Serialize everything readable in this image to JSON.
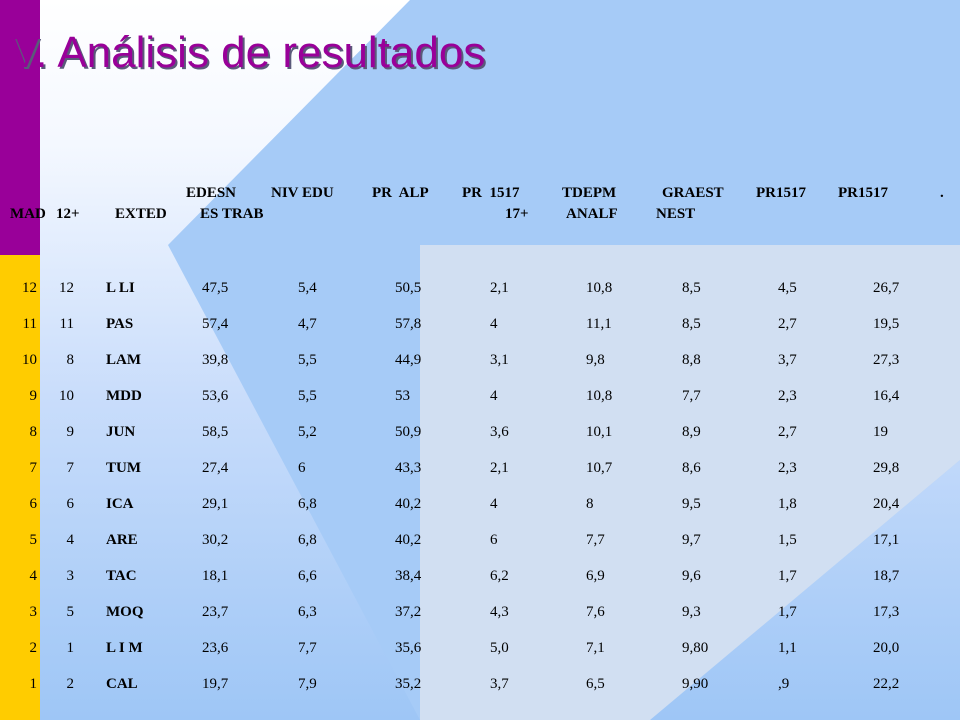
{
  "title": "V. Análisis de resultados",
  "headers": {
    "mad": "MAD",
    "c12": "12+",
    "exted": "EXTED",
    "edesn": "EDESN",
    "es_trab": "ES TRAB",
    "nivedu": "NIV EDU",
    "pralp": "PR  ALP",
    "pr1517a": "PR  1517",
    "plus17": "17+",
    "tdepm": "TDEPM",
    "analf": "ANALF",
    "graest": "GRAEST",
    "nest": "NEST",
    "pr1517b": "PR1517",
    "pr1517c": "PR1517",
    "dot": "."
  },
  "rows": [
    {
      "a": "12",
      "b": "12",
      "name": "L LI",
      "c1": "47,5",
      "c2": "5,4",
      "c3": "50,5",
      "c4": "2,1",
      "c5": "10,8",
      "c6": "8,5",
      "c7": "4,5",
      "c8": "26,7"
    },
    {
      "a": "11",
      "b": "11",
      "name": "PAS",
      "c1": "57,4",
      "c2": "4,7",
      "c3": "57,8",
      "c4": "4",
      "c5": "11,1",
      "c6": "8,5",
      "c7": "2,7",
      "c8": "19,5"
    },
    {
      "a": "10",
      "b": "8",
      "name": "LAM",
      "c1": "39,8",
      "c2": "5,5",
      "c3": "44,9",
      "c4": "3,1",
      "c5": "9,8",
      "c6": "8,8",
      "c7": "3,7",
      "c8": "27,3"
    },
    {
      "a": "9",
      "b": "10",
      "name": "MDD",
      "c1": "53,6",
      "c2": "5,5",
      "c3": "53",
      "c4": "4",
      "c5": "10,8",
      "c6": "7,7",
      "c7": "2,3",
      "c8": "16,4"
    },
    {
      "a": "8",
      "b": "9",
      "name": "JUN",
      "c1": "58,5",
      "c2": "5,2",
      "c3": "50,9",
      "c4": "3,6",
      "c5": "10,1",
      "c6": "8,9",
      "c7": "2,7",
      "c8": "19"
    },
    {
      "a": "7",
      "b": "7",
      "name": "TUM",
      "c1": "27,4",
      "c2": "6",
      "c3": "43,3",
      "c4": "2,1",
      "c5": "10,7",
      "c6": "8,6",
      "c7": "2,3",
      "c8": "29,8"
    },
    {
      "a": "6",
      "b": "6",
      "name": "ICA",
      "c1": "29,1",
      "c2": "6,8",
      "c3": "40,2",
      "c4": "4",
      "c5": "8",
      "c6": "9,5",
      "c7": "1,8",
      "c8": "20,4"
    },
    {
      "a": "5",
      "b": "4",
      "name": "ARE",
      "c1": "30,2",
      "c2": "6,8",
      "c3": "40,2",
      "c4": "6",
      "c5": "7,7",
      "c6": "9,7",
      "c7": "1,5",
      "c8": "17,1"
    },
    {
      "a": "4",
      "b": "3",
      "name": "TAC",
      "c1": "18,1",
      "c2": "6,6",
      "c3": "38,4",
      "c4": "6,2",
      "c5": "6,9",
      "c6": "9,6",
      "c7": "1,7",
      "c8": "18,7"
    },
    {
      "a": "3",
      "b": "5",
      "name": "MOQ",
      "c1": "23,7",
      "c2": "6,3",
      "c3": "37,2",
      "c4": "4,3",
      "c5": "7,6",
      "c6": "9,3",
      "c7": "1,7",
      "c8": "17,3"
    },
    {
      "a": "2",
      "b": "1",
      "name": "L I M",
      "c1": "23,6",
      "c2": "7,7",
      "c3": "35,6",
      "c4": "5,0",
      "c5": "7,1",
      "c6": "9,80",
      "c7": "1,1",
      "c8": "20,0"
    },
    {
      "a": "1",
      "b": "2",
      "name": "CAL",
      "c1": "19,7",
      "c2": "7,9",
      "c3": "35,2",
      "c4": "3,7",
      "c5": "6,5",
      "c6": "9,90",
      "c7": ",9",
      "c8": "22,2"
    }
  ]
}
